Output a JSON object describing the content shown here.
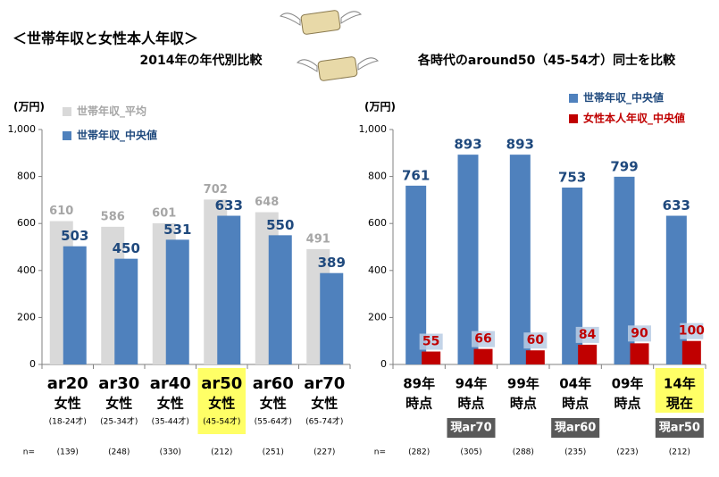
{
  "title": "＜世帯年収と女性本人年収＞",
  "chart_data": [
    {
      "type": "bar",
      "title": "2014年の年代別比較",
      "y_label": "(万円)",
      "categories": [
        "ar20",
        "ar30",
        "ar40",
        "ar50",
        "ar60",
        "ar70"
      ],
      "category_sublabels": [
        "女性",
        "女性",
        "女性",
        "女性",
        "女性",
        "女性"
      ],
      "age_ranges": [
        "(18-24才)",
        "(25-34才)",
        "(35-44才)",
        "(45-54才)",
        "(55-64才)",
        "(65-74才)"
      ],
      "highlight_index": 3,
      "n_label": "n=",
      "n_values": [
        "(139)",
        "(248)",
        "(330)",
        "(212)",
        "(251)",
        "(227)"
      ],
      "series": [
        {
          "name": "世帯年収_平均",
          "color": "#d9d9d9",
          "label_color": "#a6a6a6",
          "values": [
            610,
            586,
            601,
            702,
            648,
            491
          ]
        },
        {
          "name": "世帯年収_中央値",
          "color": "#4f81bd",
          "label_color": "#1f497d",
          "values": [
            503,
            450,
            531,
            633,
            550,
            389
          ]
        }
      ],
      "ylim": [
        0,
        1000
      ],
      "yticks": [
        0,
        200,
        400,
        600,
        800,
        {
          "value": 1000,
          "label": "1,000"
        }
      ]
    },
    {
      "type": "bar",
      "title": "各時代のaround50（45-54才）同士を比較",
      "y_label": "(万円)",
      "categories": [
        "89年",
        "94年",
        "99年",
        "04年",
        "09年",
        "14年"
      ],
      "category_sublabels": [
        "時点",
        "時点",
        "時点",
        "時点",
        "時点",
        "現在"
      ],
      "tags": [
        null,
        "現ar70",
        null,
        "現ar60",
        null,
        "現ar50"
      ],
      "highlight_index": 5,
      "n_label": "n=",
      "n_values": [
        "(282)",
        "(305)",
        "(288)",
        "(235)",
        "(223)",
        "(212)"
      ],
      "series": [
        {
          "name": "世帯年収_中央値",
          "color": "#4f81bd",
          "label_color": "#1f497d",
          "values": [
            761,
            893,
            893,
            753,
            799,
            633
          ]
        },
        {
          "name": "女性本人年収_中央値",
          "color": "#c00000",
          "label_color": "#c00000",
          "values": [
            55,
            66,
            60,
            84,
            90,
            100
          ]
        }
      ],
      "ylim": [
        0,
        1000
      ],
      "yticks": [
        0,
        200,
        400,
        600,
        800,
        {
          "value": 1000,
          "label": "1,000"
        }
      ]
    }
  ]
}
